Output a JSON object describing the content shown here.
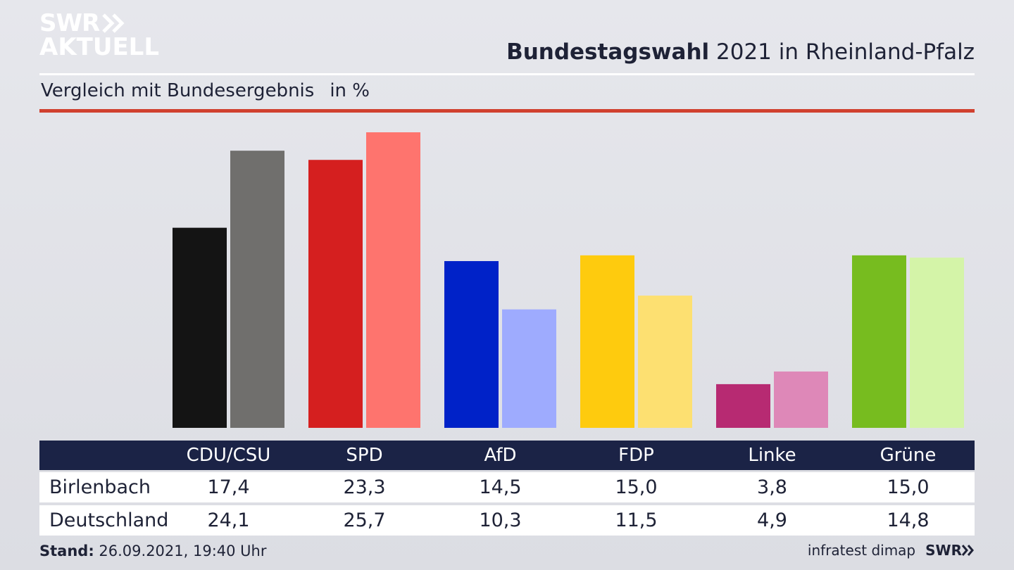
{
  "logo": {
    "line1": "SWR",
    "line2": "AKTUELL"
  },
  "header": {
    "title_bold": "Bundestagswahl",
    "title_rest": " 2021 in Rheinland-Pfalz",
    "subtitle": "Vergleich mit Bundesergebnis",
    "unit": "in %"
  },
  "chart_data": {
    "type": "bar",
    "categories": [
      "CDU/CSU",
      "SPD",
      "AfD",
      "FDP",
      "Linke",
      "Grüne"
    ],
    "series": [
      {
        "name": "Birlenbach",
        "values": [
          17.4,
          23.3,
          14.5,
          15.0,
          3.8,
          15.0
        ]
      },
      {
        "name": "Deutschland",
        "values": [
          24.1,
          25.7,
          10.3,
          11.5,
          4.9,
          14.8
        ]
      }
    ],
    "ylim": [
      0,
      25.7
    ],
    "colors": {
      "Birlenbach": [
        "#141414",
        "#d51f1f",
        "#0022c8",
        "#fecb0e",
        "#b72a72",
        "#77bc1f"
      ],
      "Deutschland": [
        "#706f6d",
        "#fe746e",
        "#9eabfe",
        "#fde071",
        "#de88b8",
        "#d4f4a8"
      ]
    },
    "grid": false,
    "legend": "none"
  },
  "table": {
    "rows": [
      {
        "label": "Birlenbach",
        "values": [
          "17,4",
          "23,3",
          "14,5",
          "15,0",
          "3,8",
          "15,0"
        ]
      },
      {
        "label": "Deutschland",
        "values": [
          "24,1",
          "25,7",
          "10,3",
          "11,5",
          "4,9",
          "14,8"
        ]
      }
    ]
  },
  "footer": {
    "stand_label": "Stand:",
    "stand_value": " 26.09.2021, 19:40 Uhr",
    "source": "infratest dimap",
    "brand": "SWR"
  }
}
